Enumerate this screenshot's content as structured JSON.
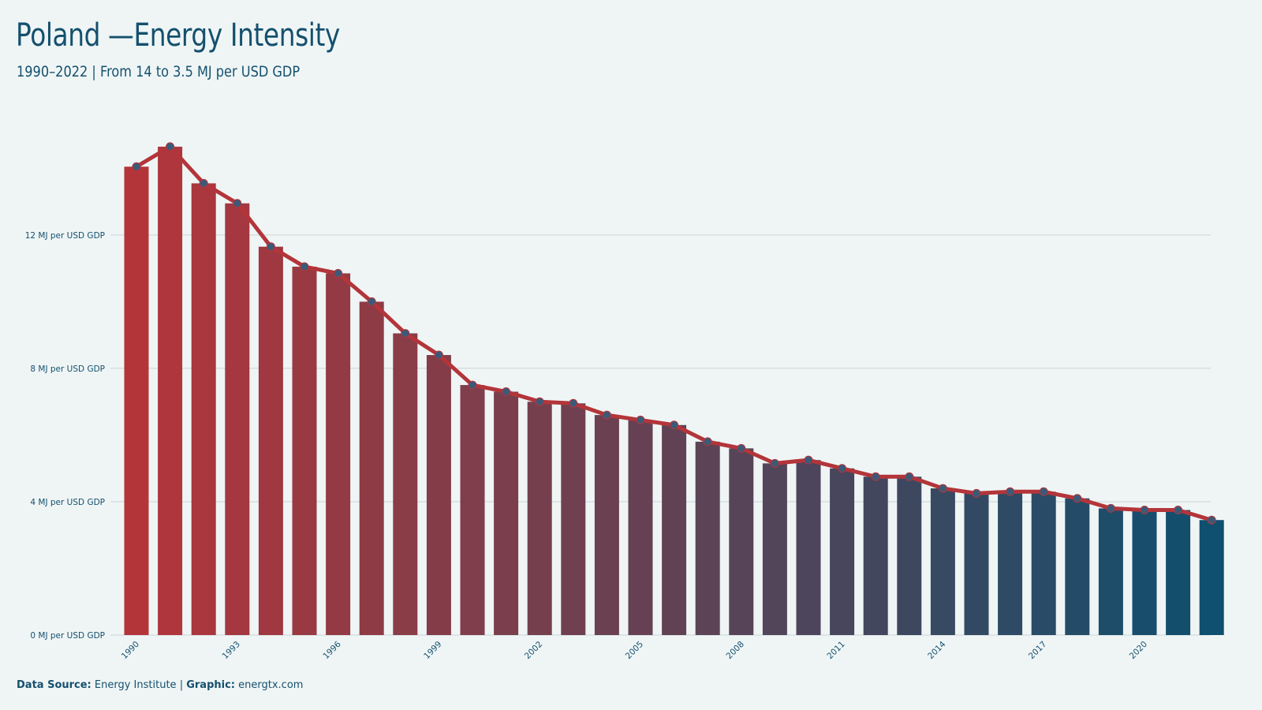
{
  "title": "Poland —Energy Intensity",
  "subtitle": "1990–2022 | From 14 to 3.5 MJ per USD GDP",
  "footer": {
    "source_label": "Data Source:",
    "source_value": "Energy Institute",
    "separator": "|",
    "graphic_label": "Graphic:",
    "graphic_value": "energtx.com"
  },
  "colors": {
    "background": "#eff5f5",
    "text": "#14506e",
    "bar_start": "#b3353a",
    "bar_end": "#0f4f6f",
    "line": "#b3353a",
    "marker": "#3c5a78",
    "grid": "#c9d3d6"
  },
  "chart_data": {
    "type": "bar",
    "title": "Poland —Energy Intensity",
    "subtitle": "1990–2022 | From 14 to 3.5 MJ per USD GDP",
    "xlabel": "",
    "ylabel": "",
    "ylim": [
      0,
      15.5
    ],
    "yticks": [
      0,
      4,
      8,
      12
    ],
    "ytick_labels": [
      "0 MJ per USD GDP",
      "4 MJ per USD GDP",
      "8 MJ per USD GDP",
      "12 MJ per USD GDP"
    ],
    "xtick_labels": [
      "1990",
      "1993",
      "1996",
      "1999",
      "2002",
      "2005",
      "2008",
      "2011",
      "2014",
      "2017",
      "2020"
    ],
    "grid": true,
    "legend": "none",
    "overlay": "line with markers over bars (same values)",
    "categories": [
      "1990",
      "1991",
      "1992",
      "1993",
      "1994",
      "1995",
      "1996",
      "1997",
      "1998",
      "1999",
      "2000",
      "2001",
      "2002",
      "2003",
      "2004",
      "2005",
      "2006",
      "2007",
      "2008",
      "2009",
      "2010",
      "2011",
      "2012",
      "2013",
      "2014",
      "2015",
      "2016",
      "2017",
      "2018",
      "2019",
      "2020",
      "2021",
      "2022"
    ],
    "values": [
      14.05,
      14.65,
      13.55,
      12.95,
      11.65,
      11.05,
      10.85,
      10.0,
      9.05,
      8.4,
      7.5,
      7.3,
      7.0,
      6.95,
      6.6,
      6.45,
      6.3,
      5.8,
      5.6,
      5.15,
      5.25,
      5.0,
      4.75,
      4.75,
      4.4,
      4.25,
      4.3,
      4.3,
      4.1,
      3.8,
      3.75,
      3.75,
      3.45
    ]
  }
}
